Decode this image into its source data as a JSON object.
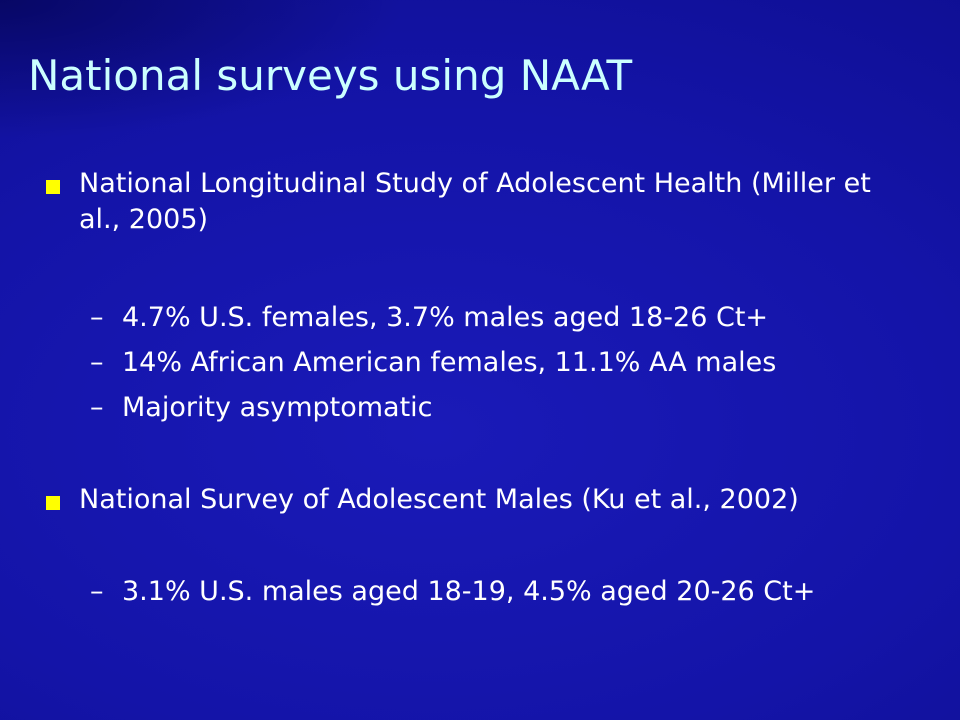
{
  "slide": {
    "title": "National surveys using NAAT",
    "bullets": [
      {
        "text": "National Longitudinal Study of Adolescent Health (Miller et al., 2005)",
        "subitems": [
          "4.7% U.S. females, 3.7% males aged 18-26 Ct+",
          "14% African American females, 11.1% AA males",
          "Majority asymptomatic"
        ]
      },
      {
        "text": "National Survey of Adolescent Males (Ku et al., 2002)",
        "subitems": [
          "3.1% U.S. males aged 18-19, 4.5% aged 20-26 Ct+"
        ]
      }
    ],
    "dash": "–"
  },
  "colors": {
    "background": "#1414a8",
    "title": "#ccffff",
    "bullet": "#ffff00",
    "text": "#ffffff"
  }
}
